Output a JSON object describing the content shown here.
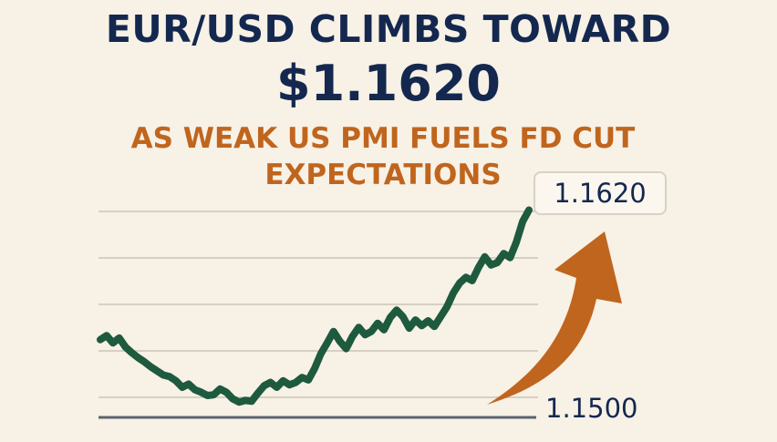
{
  "header": {
    "title_line1": "EUR/USD CLIMBS TOWARD",
    "title_line2": "$1.1620",
    "subtitle": "AS WEAK US PMI FUELS FD CUT EXPECTATIONS"
  },
  "colors": {
    "title": "#14284f",
    "subtitle": "#c0651e",
    "line": "#1e5a3e",
    "arrow": "#c0651e",
    "grid": "#d6d0c4",
    "baseline": "#5c6470",
    "background": "#f7f1e6"
  },
  "chart_data": {
    "type": "line",
    "title": "",
    "xlabel": "",
    "ylabel": "",
    "ylim": [
      1.14981,
      1.16247
    ],
    "grid": true,
    "annotations": {
      "end_value": "1.1620",
      "base_value": "1.1500",
      "arrow": "up"
    },
    "series": [
      {
        "values": [
          1.1541,
          1.15435,
          1.1539,
          1.1542,
          1.15365,
          1.1533,
          1.153,
          1.15275,
          1.15245,
          1.1522,
          1.15195,
          1.15185,
          1.1516,
          1.1512,
          1.1514,
          1.15105,
          1.1509,
          1.1507,
          1.15075,
          1.1511,
          1.1509,
          1.1505,
          1.1503,
          1.1504,
          1.15035,
          1.15085,
          1.1513,
          1.1515,
          1.1512,
          1.1516,
          1.15135,
          1.1515,
          1.1518,
          1.15165,
          1.15235,
          1.15325,
          1.1539,
          1.1546,
          1.154,
          1.15355,
          1.1543,
          1.15485,
          1.1544,
          1.1546,
          1.1551,
          1.1547,
          1.15545,
          1.1559,
          1.1555,
          1.1548,
          1.1553,
          1.15495,
          1.15525,
          1.1549,
          1.1555,
          1.1561,
          1.15695,
          1.15755,
          1.1579,
          1.1577,
          1.1585,
          1.15915,
          1.15865,
          1.1588,
          1.15935,
          1.1591,
          1.16005,
          1.1613,
          1.162
        ]
      }
    ]
  }
}
